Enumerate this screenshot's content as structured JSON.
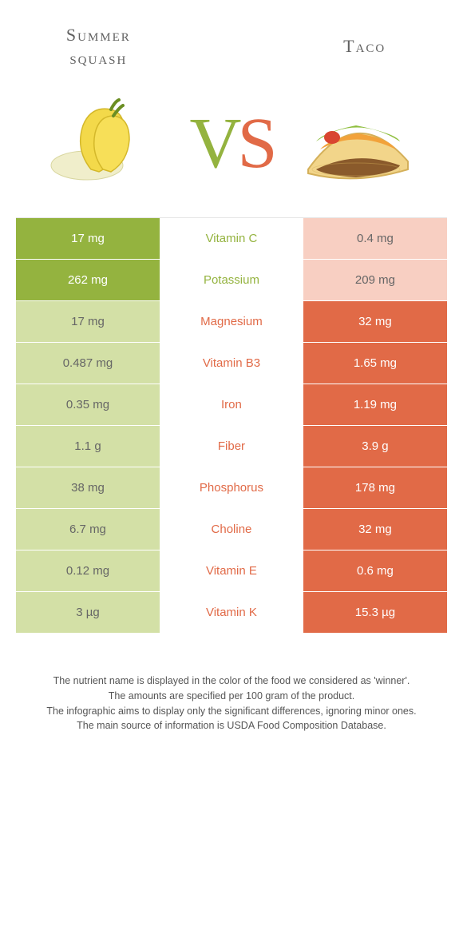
{
  "header": {
    "left_title": "Summer\nsquash",
    "right_title": "Taco",
    "vs_v": "V",
    "vs_s": "S"
  },
  "colors": {
    "left_strong": "#94b33f",
    "left_weak": "#d3e0a6",
    "right_strong": "#e16a47",
    "right_weak": "#f8cfc2",
    "text_mid_left": "#94b33f",
    "text_mid_right": "#e16a47"
  },
  "rows": [
    {
      "left": "17 mg",
      "label": "Vitamin C",
      "right": "0.4 mg",
      "winner": "left"
    },
    {
      "left": "262 mg",
      "label": "Potassium",
      "right": "209 mg",
      "winner": "left"
    },
    {
      "left": "17 mg",
      "label": "Magnesium",
      "right": "32 mg",
      "winner": "right"
    },
    {
      "left": "0.487 mg",
      "label": "Vitamin B3",
      "right": "1.65 mg",
      "winner": "right"
    },
    {
      "left": "0.35 mg",
      "label": "Iron",
      "right": "1.19 mg",
      "winner": "right"
    },
    {
      "left": "1.1 g",
      "label": "Fiber",
      "right": "3.9 g",
      "winner": "right"
    },
    {
      "left": "38 mg",
      "label": "Phosphorus",
      "right": "178 mg",
      "winner": "right"
    },
    {
      "left": "6.7 mg",
      "label": "Choline",
      "right": "32 mg",
      "winner": "right"
    },
    {
      "left": "0.12 mg",
      "label": "Vitamin E",
      "right": "0.6 mg",
      "winner": "right"
    },
    {
      "left": "3 µg",
      "label": "Vitamin K",
      "right": "15.3 µg",
      "winner": "right"
    }
  ],
  "footer": {
    "l1": "The nutrient name is displayed in the color of the food we considered as 'winner'.",
    "l2": "The amounts are specified per 100 gram of the product.",
    "l3": "The infographic aims to display only the significant differences, ignoring minor ones.",
    "l4": "The main source of information is USDA Food Composition Database."
  }
}
